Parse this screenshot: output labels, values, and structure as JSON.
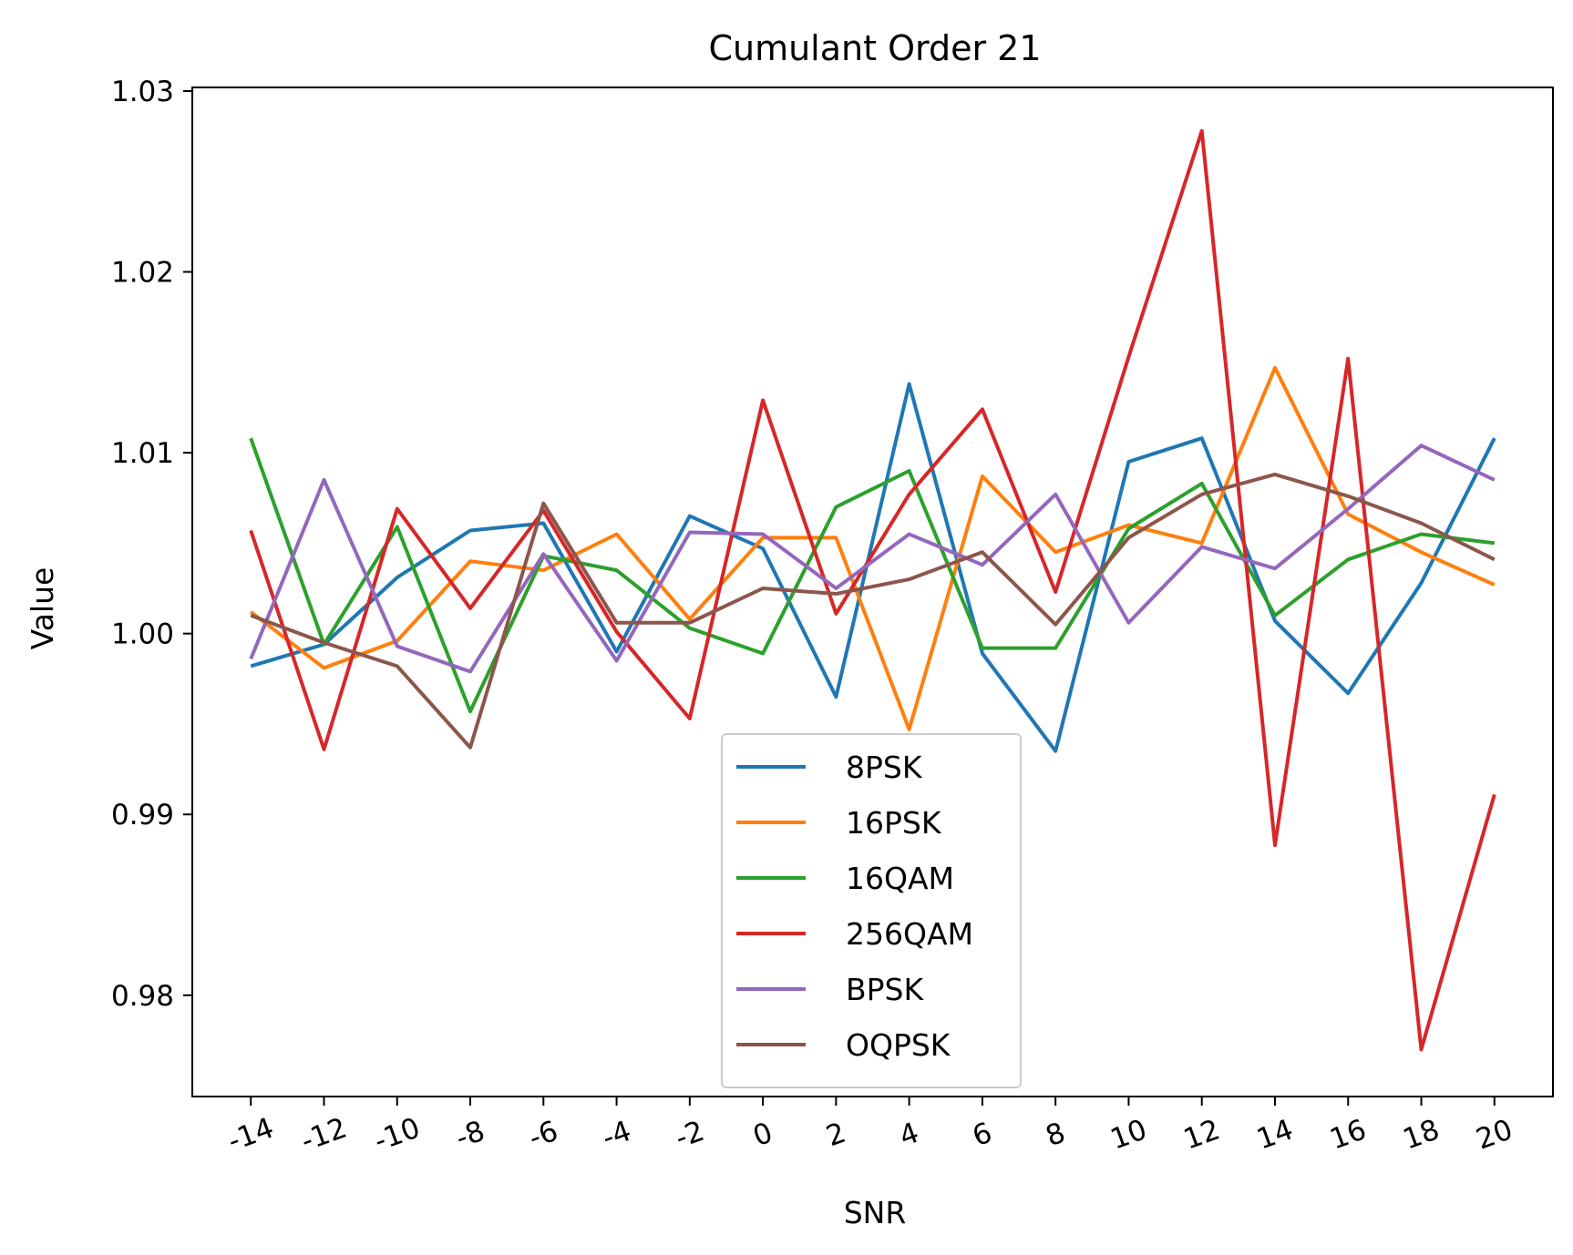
{
  "chart_data": {
    "type": "line",
    "title": "Cumulant Order 21",
    "xlabel": "SNR",
    "ylabel": "Value",
    "x": [
      -14,
      -12,
      -10,
      -8,
      -6,
      -4,
      -2,
      0,
      2,
      4,
      6,
      8,
      10,
      12,
      14,
      16,
      18,
      20
    ],
    "x_tick_labels": [
      "-14",
      "-12",
      "-10",
      "-8",
      "-6",
      "-4",
      "-2",
      "0",
      "2",
      "4",
      "6",
      "8",
      "10",
      "12",
      "14",
      "16",
      "18",
      "20"
    ],
    "xlim": [
      -15.6,
      21.6
    ],
    "ylim": [
      0.9744,
      1.0302
    ],
    "y_ticks": [
      0.98,
      0.99,
      1.0,
      1.01,
      1.02,
      1.03
    ],
    "y_tick_labels": [
      "0.98",
      "0.99",
      "1.00",
      "1.01",
      "1.02",
      "1.03"
    ],
    "grid": false,
    "legend_position": "lower center",
    "series": [
      {
        "name": "8PSK",
        "color": "#1f77b4",
        "values": [
          0.9982,
          0.9994,
          1.0031,
          1.0057,
          1.0061,
          0.999,
          1.0065,
          1.0047,
          0.9965,
          1.0138,
          0.9989,
          0.9935,
          1.0095,
          1.0108,
          1.0007,
          0.9967,
          1.0028,
          1.0108
        ]
      },
      {
        "name": "16PSK",
        "color": "#ff7f0e",
        "values": [
          1.0012,
          0.9981,
          0.9996,
          1.004,
          1.0035,
          1.0055,
          1.0008,
          1.0053,
          1.0053,
          0.9947,
          1.0087,
          1.0045,
          1.006,
          1.005,
          1.0147,
          1.0066,
          1.0045,
          1.0027
        ]
      },
      {
        "name": "16QAM",
        "color": "#2ca02c",
        "values": [
          1.0108,
          0.9994,
          1.0059,
          0.9957,
          1.0043,
          1.0035,
          1.0003,
          0.9989,
          1.007,
          1.009,
          0.9992,
          0.9992,
          1.0058,
          1.0083,
          1.001,
          1.0041,
          1.0055,
          1.005
        ]
      },
      {
        "name": "256QAM",
        "color": "#d62728",
        "values": [
          1.0057,
          0.9936,
          1.0069,
          1.0014,
          1.0068,
          1.0001,
          0.9953,
          1.0129,
          1.0011,
          1.0077,
          1.0124,
          1.0023,
          1.0153,
          1.0278,
          0.9883,
          1.0152,
          0.977,
          0.9911
        ]
      },
      {
        "name": "BPSK",
        "color": "#9467bd",
        "values": [
          0.9986,
          1.0085,
          0.9993,
          0.9979,
          1.0044,
          0.9985,
          1.0056,
          1.0055,
          1.0025,
          1.0055,
          1.0038,
          1.0077,
          1.0006,
          1.0048,
          1.0036,
          1.0069,
          1.0104,
          1.0085
        ]
      },
      {
        "name": "OQPSK",
        "color": "#8c564b",
        "values": [
          1.001,
          0.9995,
          0.9982,
          0.9937,
          1.0072,
          1.0006,
          1.0006,
          1.0025,
          1.0022,
          1.003,
          1.0045,
          1.0005,
          1.0053,
          1.0077,
          1.0088,
          1.0076,
          1.0061,
          1.0041
        ]
      }
    ]
  }
}
